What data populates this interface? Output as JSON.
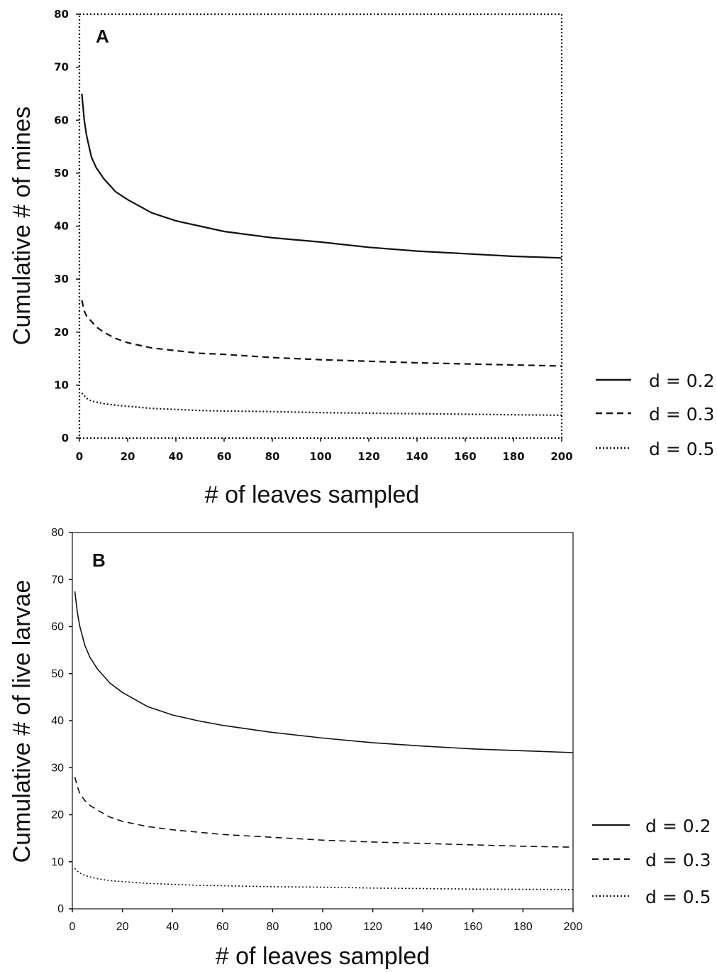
{
  "chart_data": [
    {
      "type": "line",
      "panel_label": "A",
      "xlabel": "# of leaves sampled",
      "ylabel": "Cumulative # of mines",
      "xlim": [
        0,
        200
      ],
      "ylim": [
        0,
        80
      ],
      "xticks": [
        "0",
        "20",
        "40",
        "60",
        "80",
        "100",
        "120",
        "140",
        "160",
        "180",
        "200"
      ],
      "yticks": [
        "0",
        "10",
        "20",
        "30",
        "40",
        "50",
        "60",
        "70",
        "80"
      ],
      "legend_position": "right",
      "x": [
        1,
        2,
        3,
        5,
        7,
        10,
        15,
        20,
        30,
        40,
        50,
        60,
        80,
        100,
        120,
        140,
        160,
        180,
        200
      ],
      "series": [
        {
          "name": "d = 0.2",
          "style": "solid",
          "values": [
            65,
            60,
            57,
            53,
            51,
            49,
            46.5,
            45,
            42.5,
            41,
            40,
            39,
            37.8,
            37,
            36,
            35.3,
            34.8,
            34.3,
            34
          ]
        },
        {
          "name": "d = 0.3",
          "style": "dashed",
          "values": [
            26,
            24,
            23,
            22,
            21,
            20,
            18.8,
            18,
            17,
            16.5,
            16,
            15.8,
            15.2,
            14.8,
            14.5,
            14.2,
            14,
            13.8,
            13.6
          ]
        },
        {
          "name": "d = 0.5",
          "style": "dotted",
          "values": [
            8.5,
            8,
            7.5,
            7,
            6.8,
            6.5,
            6.2,
            6,
            5.6,
            5.4,
            5.2,
            5.1,
            5,
            4.8,
            4.7,
            4.6,
            4.5,
            4.4,
            4.3
          ]
        }
      ]
    },
    {
      "type": "line",
      "panel_label": "B",
      "xlabel": "# of leaves sampled",
      "ylabel": "Cumulative # of live larvae",
      "xlim": [
        0,
        200
      ],
      "ylim": [
        0,
        80
      ],
      "xticks": [
        "0",
        "20",
        "40",
        "60",
        "80",
        "100",
        "120",
        "140",
        "160",
        "180",
        "200"
      ],
      "yticks": [
        "0",
        "10",
        "20",
        "30",
        "40",
        "50",
        "60",
        "70",
        "80"
      ],
      "legend_position": "right",
      "x": [
        1,
        2,
        3,
        5,
        7,
        10,
        15,
        20,
        30,
        40,
        50,
        60,
        80,
        100,
        120,
        140,
        160,
        180,
        200
      ],
      "series": [
        {
          "name": "d = 0.2",
          "style": "solid",
          "values": [
            67.5,
            63,
            60,
            56,
            53.5,
            51,
            48,
            46,
            43,
            41.2,
            40,
            39,
            37.5,
            36.3,
            35.3,
            34.6,
            34,
            33.6,
            33.2
          ]
        },
        {
          "name": "d = 0.3",
          "style": "dashed",
          "values": [
            28,
            26,
            24.5,
            23,
            22,
            21,
            19.5,
            18.6,
            17.5,
            16.8,
            16.3,
            15.8,
            15.2,
            14.6,
            14.2,
            13.9,
            13.6,
            13.3,
            13.1
          ]
        },
        {
          "name": "d = 0.5",
          "style": "dotted",
          "values": [
            8.6,
            8,
            7.6,
            7.1,
            6.8,
            6.4,
            6,
            5.8,
            5.4,
            5.2,
            5,
            4.9,
            4.7,
            4.6,
            4.4,
            4.3,
            4.2,
            4.15,
            4.1
          ]
        }
      ]
    }
  ]
}
